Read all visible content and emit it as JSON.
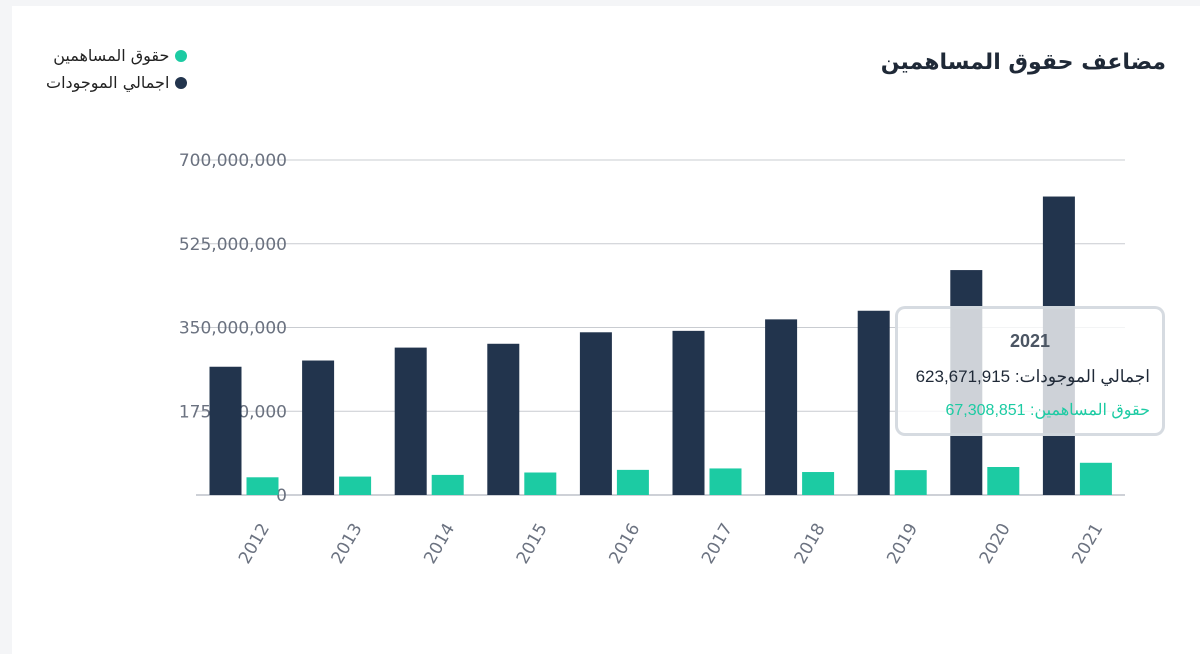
{
  "title": "مضاعف حقوق المساهمين",
  "legend": [
    {
      "label": "حقوق المساهمين",
      "color": "#1ccba3"
    },
    {
      "label": "اجمالي الموجودات",
      "color": "#22344d"
    }
  ],
  "tooltip": {
    "year": "2021",
    "assets_label": "اجمالي الموجودات:",
    "assets_value": "623,671,915",
    "equity_label": "حقوق المساهمين:",
    "equity_value": "67,308,851"
  },
  "chart_data": {
    "type": "bar",
    "title": "مضاعف حقوق المساهمين",
    "categories": [
      "2012",
      "2013",
      "2014",
      "2015",
      "2016",
      "2017",
      "2018",
      "2019",
      "2020",
      "2021"
    ],
    "series": [
      {
        "name": "اجمالي الموجودات",
        "color": "#22344d",
        "values": [
          268000000,
          281000000,
          308000000,
          316000000,
          340000000,
          343000000,
          367000000,
          385000000,
          470000000,
          623671915
        ]
      },
      {
        "name": "حقوق المساهمين",
        "color": "#1ccba3",
        "values": [
          37000000,
          38500000,
          42000000,
          47000000,
          52500000,
          55500000,
          48000000,
          52000000,
          58500000,
          67308851
        ]
      }
    ],
    "yticks": [
      0,
      175000000,
      350000000,
      525000000,
      700000000
    ],
    "ytick_labels": [
      "0",
      "175,000,000",
      "350,000,000",
      "525,000,000",
      "700,000,000"
    ],
    "ylim": [
      0,
      700000000
    ],
    "grid": true,
    "legend_position": "top-left"
  }
}
